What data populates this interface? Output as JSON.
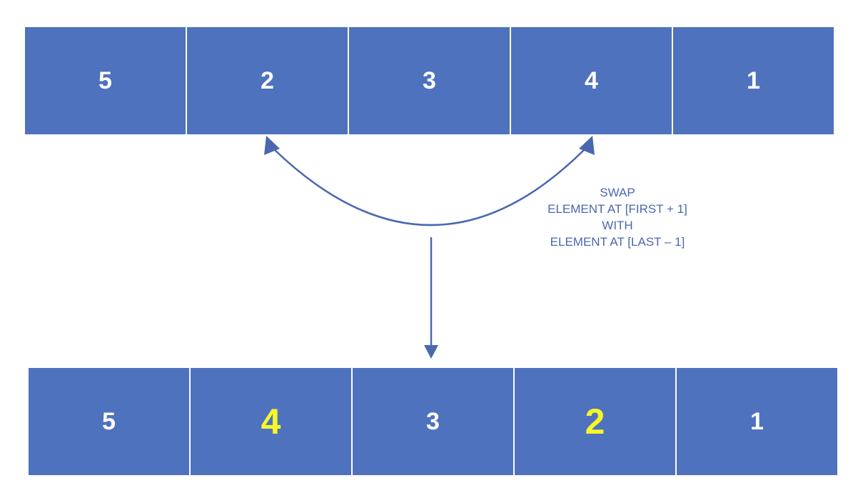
{
  "top_array": {
    "cells": [
      {
        "value": "5",
        "highlight": false
      },
      {
        "value": "2",
        "highlight": false
      },
      {
        "value": "3",
        "highlight": false
      },
      {
        "value": "4",
        "highlight": false
      },
      {
        "value": "1",
        "highlight": false
      }
    ]
  },
  "bottom_array": {
    "cells": [
      {
        "value": "5",
        "highlight": false
      },
      {
        "value": "4",
        "highlight": true
      },
      {
        "value": "3",
        "highlight": false
      },
      {
        "value": "2",
        "highlight": true
      },
      {
        "value": "1",
        "highlight": false
      }
    ]
  },
  "caption": {
    "lines": [
      "SWAP",
      "ELEMENT AT [FIRST + 1]",
      "WITH",
      "ELEMENT AT [LAST – 1]"
    ]
  },
  "colors": {
    "cell_fill": "#4f72be",
    "cell_text": "#ffffff",
    "highlight_text": "#f7f72a",
    "arrow": "#4a67b0",
    "caption_text": "#4a67b0"
  }
}
